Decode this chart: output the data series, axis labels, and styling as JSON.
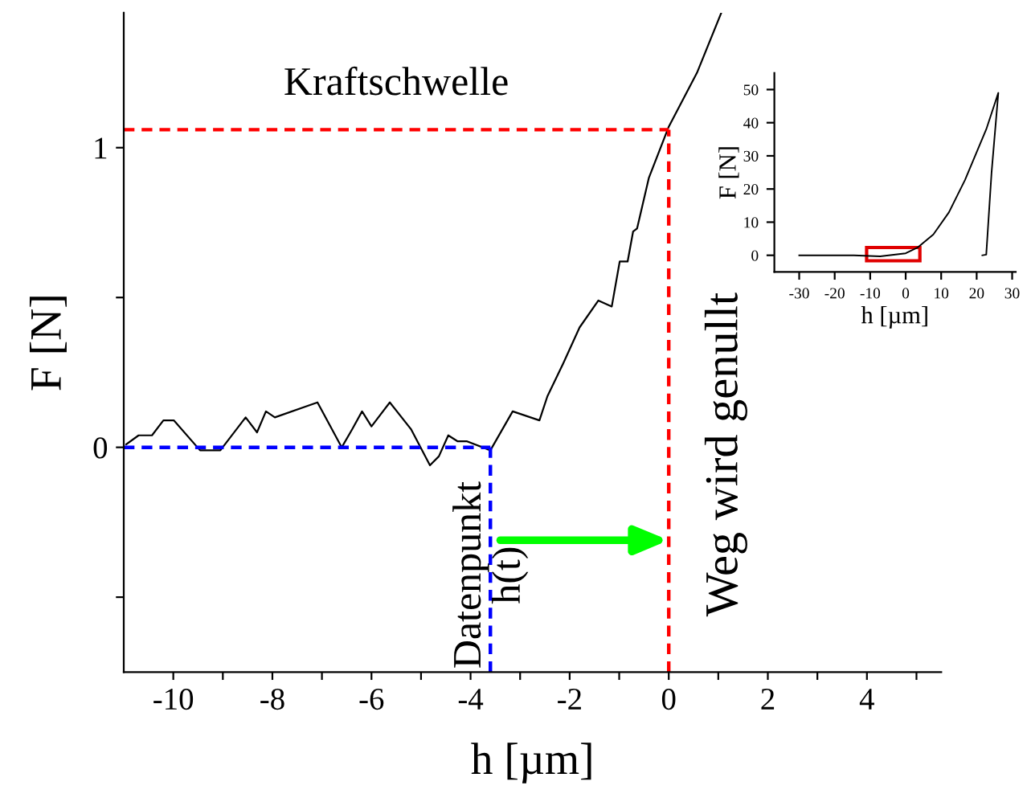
{
  "chart_data": [
    {
      "type": "line",
      "xlabel": "h [µm]",
      "ylabel": "F [N]",
      "xlim": [
        -11,
        5.5
      ],
      "xticks": [
        -10,
        {
          "value": -9,
          "label": null
        },
        -8,
        {
          "value": -7,
          "label": null
        },
        -6,
        {
          "value": -5,
          "label": null
        },
        -4,
        {
          "value": -3,
          "label": null
        },
        -2,
        {
          "value": -1,
          "label": null
        },
        0,
        {
          "value": 1,
          "label": null
        },
        2,
        {
          "value": 3,
          "label": null
        },
        4,
        {
          "value": 5,
          "label": null
        }
      ],
      "ylim": [
        -0.75,
        1.45
      ],
      "yticks": [
        {
          "value": -0.5,
          "label": null
        },
        0,
        {
          "value": 0.5,
          "label": null
        },
        1
      ],
      "grid": false,
      "series": [
        {
          "color": "#000000",
          "x": [
            -10.95,
            -10.7,
            -10.43,
            -10.2,
            -9.99,
            -9.46,
            -9.05,
            -8.54,
            -8.31,
            -8.13,
            -7.95,
            -7.09,
            -6.6,
            -6.39,
            -6.19,
            -6.0,
            -5.63,
            -5.2,
            -4.82,
            -4.64,
            -4.45,
            -4.26,
            -4.07,
            -3.6,
            -3.15,
            -2.61,
            -2.45,
            -2.13,
            -1.8,
            -1.42,
            -1.15,
            -0.99,
            -0.83,
            -0.72,
            -0.64,
            -0.4,
            0,
            0.57,
            1.06
          ],
          "values": [
            0.01,
            0.04,
            0.04,
            0.09,
            0.09,
            -0.01,
            -0.01,
            0.1,
            0.05,
            0.12,
            0.1,
            0.15,
            0.0,
            0.06,
            0.12,
            0.07,
            0.15,
            0.06,
            -0.06,
            -0.03,
            0.04,
            0.02,
            0.02,
            -0.01,
            0.12,
            0.09,
            0.17,
            0.28,
            0.4,
            0.49,
            0.47,
            0.62,
            0.62,
            0.72,
            0.73,
            0.9,
            1.07,
            1.25,
            1.45
          ]
        }
      ],
      "ref_lines": [
        {
          "axis": "y",
          "value": 1.06,
          "label": "Kraftschwelle",
          "color": "#ff0000",
          "line_style": "dashed"
        },
        {
          "axis": "x",
          "value": 0,
          "label": "Weg wird genullt",
          "color": "#ff0000",
          "line_style": "dashed"
        },
        {
          "axis": "y",
          "value": 0,
          "color": "#0000ff",
          "line_style": "dashed"
        },
        {
          "axis": "x",
          "value": -3.6,
          "label": "Datenpunkt\nh(t)",
          "color": "#0000ff",
          "line_style": "dashed"
        }
      ]
    },
    {
      "type": "line",
      "xlabel": "h [µm]",
      "ylabel": "F [N]",
      "xlim": [
        -37,
        31
      ],
      "xticks": [
        -30,
        -20,
        -10,
        0,
        10,
        20,
        30
      ],
      "ylim": [
        -5,
        55
      ],
      "yticks": [
        0,
        10,
        20,
        30,
        40,
        50
      ],
      "grid": false,
      "series": [
        {
          "color": "#000000",
          "x": [
            -30,
            -14.6,
            -7.2,
            0,
            3.3,
            7.8,
            12.2,
            16.7,
            22.7,
            26.1,
            24.2,
            22.7,
            21.6
          ],
          "values": [
            0,
            0,
            -0.3,
            0.6,
            2.3,
            6.3,
            13,
            22.7,
            38,
            49,
            25,
            0.2,
            0
          ]
        }
      ]
    }
  ]
}
